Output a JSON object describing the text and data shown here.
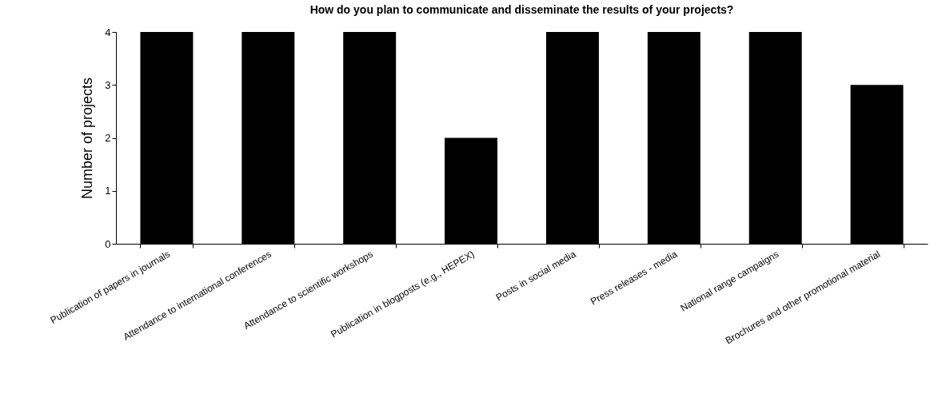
{
  "chart_data": {
    "type": "bar",
    "title": "How do you plan to communicate and disseminate the results of your projects?",
    "ylabel": "Number of projects",
    "categories": [
      "Publication of papers in journals",
      "Attendance to international conferences",
      "Attendance to scientific workshops",
      "Publication in blogposts (e.g., HEPEX)",
      "Posts in social media",
      "Press releases - media",
      "National range campaigns",
      "Brochures and other promotional material"
    ],
    "values": [
      4,
      4,
      4,
      2,
      4,
      4,
      4,
      3
    ],
    "color": "#000000",
    "ylim": [
      0,
      4
    ],
    "yticks": [
      0,
      1,
      2,
      3,
      4
    ],
    "grid": false
  }
}
